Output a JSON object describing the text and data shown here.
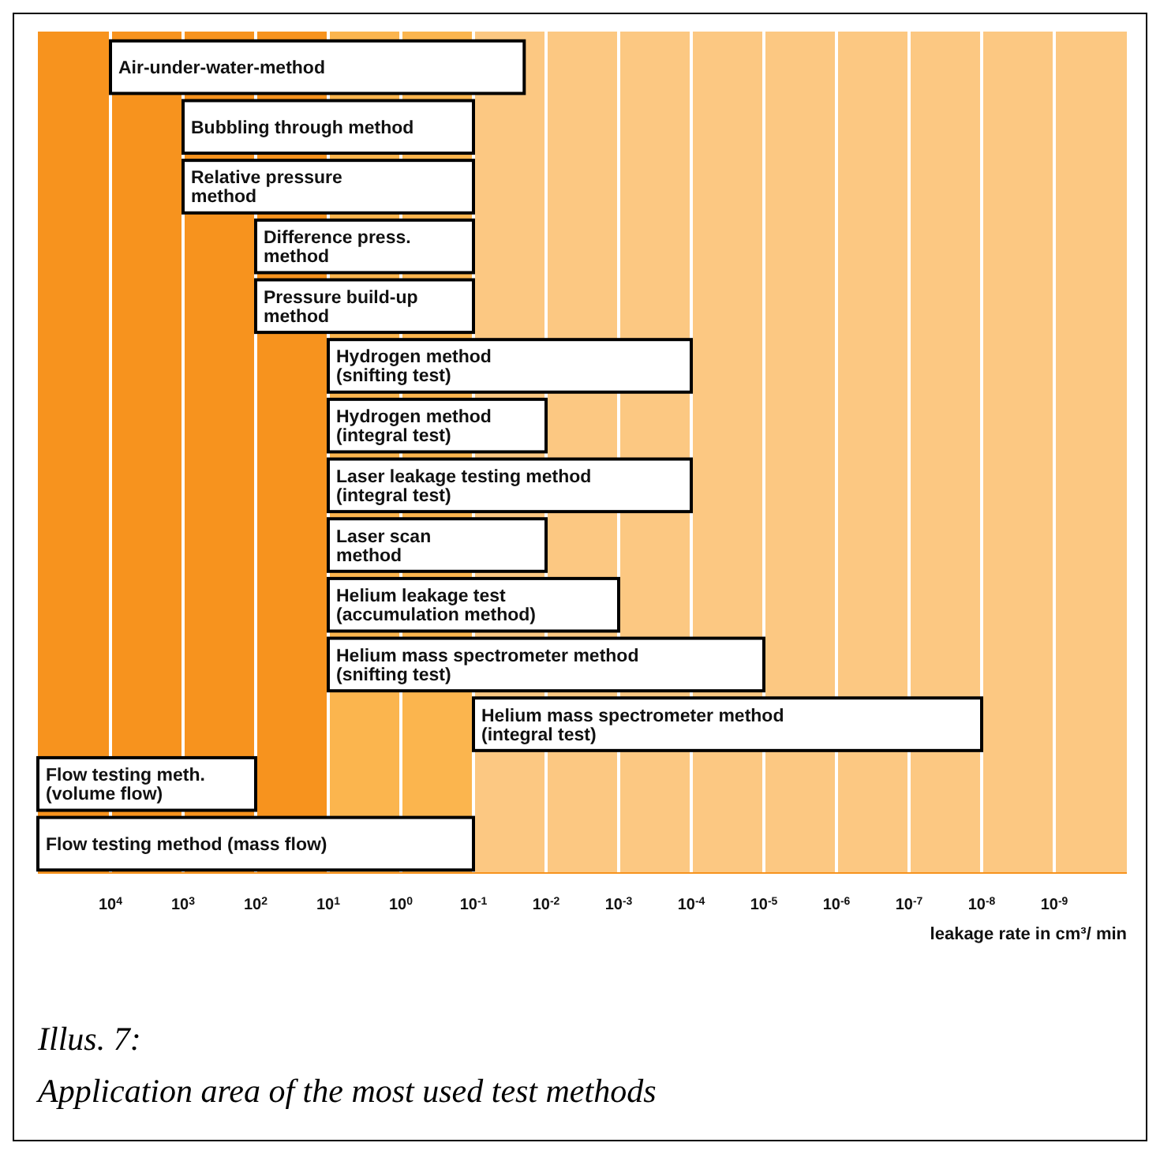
{
  "chart_data": {
    "type": "bar",
    "orientation": "horizontal",
    "log": "x",
    "title": "Illus. 7:",
    "subtitle": "Application area of the most used test methods",
    "xlabel": "leakage rate in cm³/ min",
    "categories": [
      "Air-under-water-method",
      "Bubbling through method",
      "Relative pressure\nmethod",
      "Difference press.\nmethod",
      "Pressure build-up\nmethod",
      "Hydrogen method\n(snifting test)",
      "Hydrogen method\n(integral test)",
      "Laser leakage testing method\n(integral test)",
      "Laser scan\nmethod",
      "Helium leakage test\n(accumulation method)",
      "Helium mass spectrometer method\n(snifting test)",
      "Helium mass spectrometer method\n(integral test)",
      "Flow testing meth.\n(volume flow)",
      "Flow testing method (mass flow)"
    ],
    "base": [
      0.02,
      0.1,
      0.1,
      0.1,
      0.1,
      0.0001,
      0.01,
      0.0001,
      0.01,
      0.001,
      1e-05,
      1e-08,
      100,
      0.1
    ],
    "values": [
      9999.98,
      999.9,
      999.9,
      99.9,
      99.9,
      9.9999,
      9.99,
      9.9999,
      9.99,
      9.999,
      9.99999,
      0.09999999,
      99900,
      99999.9
    ],
    "color": "#ffffff",
    "xlim": [
      100000,
      1e-10
    ],
    "xticks": [
      {
        "value": 10000,
        "label": "10$^{4}$"
      },
      {
        "value": 1000,
        "label": "10$^{3}$"
      },
      {
        "value": 100,
        "label": "10$^{2}$"
      },
      {
        "value": 10,
        "label": "10$^{1}$"
      },
      {
        "value": 1,
        "label": "10$^{0}$"
      },
      {
        "value": 0.1,
        "label": "10$^{-1}$"
      },
      {
        "value": 0.01,
        "label": "10$^{-2}$"
      },
      {
        "value": 0.001,
        "label": "10$^{-3}$"
      },
      {
        "value": 0.0001,
        "label": "10$^{-4}$"
      },
      {
        "value": 1e-05,
        "label": "10$^{-5}$"
      },
      {
        "value": 1e-06,
        "label": "10$^{-6}$"
      },
      {
        "value": 1e-07,
        "label": "10$^{-7}$"
      },
      {
        "value": 1e-08,
        "label": "10$^{-8}$"
      },
      {
        "value": 1e-09,
        "label": "10$^{-9}$"
      }
    ],
    "grid": "x",
    "bands": [
      {
        "axis": "x",
        "from": 100000,
        "to": 10,
        "color": "#f7931e"
      },
      {
        "axis": "x",
        "from": 10,
        "to": 0.1,
        "color": "#fbb54e"
      },
      {
        "axis": "x",
        "from": 0.1,
        "to": 1e-10,
        "color": "#fcc882"
      }
    ]
  }
}
